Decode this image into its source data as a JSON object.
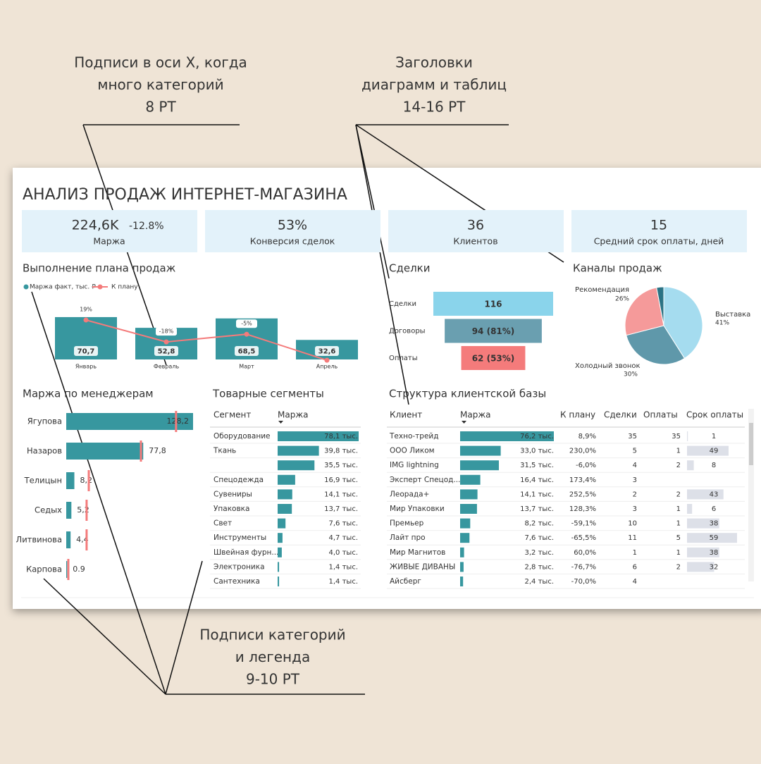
{
  "annotations": [
    [
      "Подписи в оси X, когда",
      "много категорий",
      "8 PT"
    ],
    [
      "Заголовки",
      "диаграмм и таблиц",
      "14-16 PT"
    ],
    [
      "Подписи категорий",
      "и легенда",
      "9-10 PT"
    ]
  ],
  "title": "АНАЛИЗ ПРОДАЖ ИНТЕРНЕТ-МАГАЗИНА",
  "kpis": [
    {
      "value": "224,6K",
      "delta": "-12.8%",
      "label": "Маржа"
    },
    {
      "value": "53%",
      "label": "Конверсия сделок"
    },
    {
      "value": "36",
      "label": "Клиентов"
    },
    {
      "value": "15",
      "label": "Средний срок оплаты, дней"
    }
  ],
  "plan_chart": {
    "title": "Выполнение плана продаж",
    "legend": [
      "Маржа факт, тыс. ₽",
      "К плану"
    ],
    "categories": [
      "Январь",
      "Февраль",
      "Март",
      "Апрель"
    ],
    "values": [
      70.7,
      52.8,
      68.5,
      32.6
    ],
    "value_labels": [
      "70,7",
      "52,8",
      "68,5",
      "32,6"
    ],
    "plan": [
      19,
      -18,
      -5,
      -49
    ],
    "plan_labels": [
      "19%",
      "-18%",
      "-5%",
      null
    ]
  },
  "deals": {
    "title": "Сделки",
    "categories": [
      "Сделки",
      "Договоры",
      "Оплаты"
    ],
    "values": [
      116,
      94,
      62
    ],
    "value_labels": [
      "116",
      "94 (81%)",
      "62 (53%)"
    ]
  },
  "channels": {
    "title": "Каналы продаж",
    "categories": [
      "Выставка",
      "Холодный звонок",
      "Рекомендация",
      null
    ],
    "values": [
      41,
      30,
      26,
      3
    ],
    "value_labels": [
      "41%",
      "30%",
      "26%",
      null
    ]
  },
  "managers": {
    "title": "Маржа по менеджерам",
    "categories": [
      "Ягупова",
      "Назаров",
      "Телицын",
      "Седых",
      "Литвинова",
      "Карпова"
    ],
    "values": [
      128.2,
      77.8,
      8.2,
      5.2,
      4.4,
      0.9
    ],
    "value_labels": [
      "128,2",
      "77,8",
      "8,2",
      "5,2",
      "4,4",
      "0.9"
    ],
    "targets": [
      111,
      75.5,
      22.8,
      20.6,
      20.6,
      2.1
    ]
  },
  "segments": {
    "title": "Товарные сегменты",
    "columns": [
      "Сегмент",
      "Маржа"
    ],
    "rows": [
      {
        "name": "Оборудование",
        "value": 78.1,
        "label": "78,1 тыс."
      },
      {
        "name": "Ткань",
        "value": 39.8,
        "label": "39,8 тыс."
      },
      {
        "name": null,
        "value": 35.5,
        "label": "35,5 тыс."
      },
      {
        "name": "Спецодежда",
        "value": 16.9,
        "label": "16,9 тыс."
      },
      {
        "name": "Сувениры",
        "value": 14.1,
        "label": "14,1 тыс."
      },
      {
        "name": "Упаковка",
        "value": 13.7,
        "label": "13,7 тыс."
      },
      {
        "name": "Свет",
        "value": 7.6,
        "label": "7,6 тыс."
      },
      {
        "name": "Инструменты",
        "value": 4.7,
        "label": "4,7 тыс."
      },
      {
        "name": "Швейная фурн...",
        "value": 4.0,
        "label": "4,0 тыс."
      },
      {
        "name": "Электроника",
        "value": 1.4,
        "label": "1,4 тыс."
      },
      {
        "name": "Сантехника",
        "value": 1.4,
        "label": "1,4 тыс."
      }
    ]
  },
  "clients": {
    "title": "Структура клиентской базы",
    "columns": [
      "Клиент",
      "Маржа",
      "К плану",
      "Сделки",
      "Оплаты",
      "Срок оплаты"
    ],
    "rows": [
      {
        "name": "Техно-трейд",
        "margin": 76.2,
        "margin_label": "76,2 тыс.",
        "plan": 8.9,
        "plan_label": "8,9%",
        "deals": 35,
        "payments": 35,
        "term": 1
      },
      {
        "name": "ООО Ликом",
        "margin": 33.0,
        "margin_label": "33,0 тыс.",
        "plan": 230.0,
        "plan_label": "230,0%",
        "deals": 5,
        "payments": 1,
        "term": 49
      },
      {
        "name": "IMG lightning",
        "margin": 31.5,
        "margin_label": "31,5 тыс.",
        "plan": -6.0,
        "plan_label": "-6,0%",
        "deals": 4,
        "payments": 2,
        "term": 8
      },
      {
        "name": "Эксперт Спецод...",
        "margin": 16.4,
        "margin_label": "16,4 тыс.",
        "plan": 173.4,
        "plan_label": "173,4%",
        "deals": 3,
        "payments": null,
        "term": null
      },
      {
        "name": "Леорада+",
        "margin": 14.1,
        "margin_label": "14,1 тыс.",
        "plan": 252.5,
        "plan_label": "252,5%",
        "deals": 2,
        "payments": 2,
        "term": 43
      },
      {
        "name": "Мир Упаковки",
        "margin": 13.7,
        "margin_label": "13,7 тыс.",
        "plan": 128.3,
        "plan_label": "128,3%",
        "deals": 3,
        "payments": 1,
        "term": 6
      },
      {
        "name": "Премьер",
        "margin": 8.2,
        "margin_label": "8,2 тыс.",
        "plan": -59.1,
        "plan_label": "-59,1%",
        "deals": 10,
        "payments": 1,
        "term": 38
      },
      {
        "name": "Лайт про",
        "margin": 7.6,
        "margin_label": "7,6 тыс.",
        "plan": -65.5,
        "plan_label": "-65,5%",
        "deals": 11,
        "payments": 5,
        "term": 59
      },
      {
        "name": "Мир Магнитов",
        "margin": 3.2,
        "margin_label": "3,2 тыс.",
        "plan": 60.0,
        "plan_label": "60,0%",
        "deals": 1,
        "payments": 1,
        "term": 38
      },
      {
        "name": "ЖИВЫЕ ДИВАНЫ",
        "margin": 2.8,
        "margin_label": "2,8 тыс.",
        "plan": -76.7,
        "plan_label": "-76,7%",
        "deals": 6,
        "payments": 2,
        "term": 32
      },
      {
        "name": "Айсберг",
        "margin": 2.4,
        "margin_label": "2,4 тыс.",
        "plan": -70.0,
        "plan_label": "-70,0%",
        "deals": 4,
        "payments": null,
        "term": null
      }
    ]
  }
}
